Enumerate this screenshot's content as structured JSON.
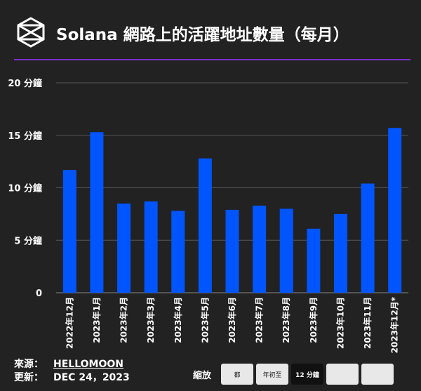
{
  "header": {
    "title": "Solana 網路上的活躍地址數量（每月）"
  },
  "footer": {
    "source_label": "來源：",
    "source_value": "HELLOMOON",
    "updated_label": "更新：",
    "updated_value": "DEC 24，2023"
  },
  "zoom": {
    "label": "縮放",
    "buttons": [
      "都",
      "年初至",
      "12 分鐘",
      "",
      ""
    ],
    "active_index": 2
  },
  "colors": {
    "background": "#222222",
    "bar": "#0055ff",
    "divider": "#7a2fc8",
    "grid": "#555555"
  },
  "chart_data": {
    "type": "bar",
    "categories": [
      "2022年12月",
      "2023年1月",
      "2023年2月",
      "2023年3月",
      "2023年4月",
      "2023年5月",
      "2023年6月",
      "2023年7月",
      "2023年8月",
      "2023年9月",
      "2023年10月",
      "2023年11月",
      "2023年12月*"
    ],
    "values": [
      11.7,
      15.3,
      8.5,
      8.7,
      7.8,
      12.8,
      7.9,
      8.3,
      8.0,
      6.1,
      7.5,
      10.4,
      15.7
    ],
    "ylim": [
      0,
      20
    ],
    "yticks": [
      0,
      5,
      10,
      15,
      20
    ],
    "ytick_labels": [
      "0",
      "5 分鐘",
      "10 分鐘",
      "15 分鐘",
      "20 分鐘"
    ],
    "grid": true,
    "title": "",
    "xlabel": "",
    "ylabel": ""
  }
}
